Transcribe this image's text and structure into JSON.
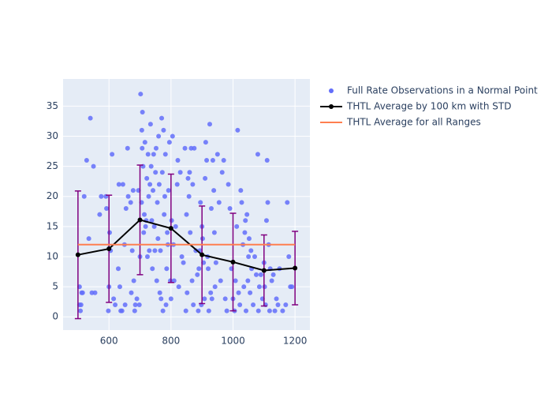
{
  "chart_data": {
    "type": "scatter",
    "xlim": [
      452,
      1248
    ],
    "ylim": [
      -2.2,
      39.5
    ],
    "xticks": [
      600,
      800,
      1000,
      1200
    ],
    "yticks": [
      0,
      5,
      10,
      15,
      20,
      25,
      30,
      35
    ],
    "grid": true,
    "legend": "right",
    "series": [
      {
        "name": "Full Rate Observations in a Normal Point",
        "type": "scatter",
        "color": "#636efa",
        "x": [
          505,
          505,
          508,
          510,
          512,
          515,
          520,
          528,
          535,
          540,
          545,
          550,
          555,
          570,
          575,
          590,
          592,
          598,
          600,
          602,
          605,
          610,
          615,
          620,
          630,
          632,
          635,
          638,
          642,
          645,
          650,
          652,
          655,
          660,
          662,
          670,
          672,
          675,
          678,
          680,
          683,
          685,
          690,
          695,
          698,
          700,
          702,
          705,
          706,
          707,
          708,
          710,
          712,
          714,
          716,
          718,
          720,
          722,
          724,
          726,
          728,
          730,
          732,
          734,
          736,
          738,
          740,
          742,
          744,
          746,
          748,
          750,
          752,
          754,
          756,
          758,
          760,
          762,
          764,
          766,
          768,
          770,
          772,
          774,
          776,
          778,
          780,
          782,
          784,
          786,
          788,
          790,
          792,
          795,
          798,
          800,
          802,
          805,
          808,
          810,
          815,
          820,
          822,
          825,
          830,
          835,
          840,
          845,
          848,
          850,
          852,
          855,
          858,
          860,
          862,
          865,
          868,
          870,
          872,
          875,
          880,
          885,
          888,
          890,
          893,
          895,
          898,
          900,
          902,
          905,
          908,
          910,
          912,
          915,
          918,
          920,
          922,
          925,
          928,
          930,
          932,
          935,
          938,
          940,
          942,
          945,
          950,
          955,
          960,
          965,
          970,
          975,
          980,
          985,
          990,
          995,
          1000,
          1005,
          1008,
          1012,
          1015,
          1018,
          1022,
          1025,
          1028,
          1032,
          1035,
          1038,
          1040,
          1042,
          1045,
          1048,
          1050,
          1052,
          1055,
          1058,
          1060,
          1065,
          1070,
          1075,
          1080,
          1082,
          1085,
          1090,
          1095,
          1100,
          1102,
          1105,
          1108,
          1110,
          1112,
          1115,
          1118,
          1120,
          1125,
          1130,
          1135,
          1140,
          1145,
          1150,
          1160,
          1170,
          1175,
          1180,
          1185,
          1190
        ],
        "values": [
          5,
          2,
          1,
          2,
          4,
          4,
          20,
          26,
          13,
          33,
          4,
          25,
          4,
          17,
          20,
          20,
          18,
          1,
          5,
          14,
          11,
          27,
          3,
          2,
          8,
          22,
          5,
          1,
          1,
          22,
          12,
          2,
          18,
          28,
          20,
          19,
          4,
          11,
          21,
          6,
          1,
          2,
          3,
          21,
          2,
          10,
          37,
          19,
          31,
          28,
          34,
          25,
          14,
          17,
          29,
          15,
          16,
          23,
          10,
          27,
          20,
          11,
          22,
          32,
          25,
          16,
          8,
          21,
          27,
          15,
          11,
          24,
          28,
          6,
          19,
          13,
          30,
          22,
          4,
          11,
          3,
          33,
          24,
          1,
          31,
          17,
          20,
          27,
          2,
          8,
          14,
          12,
          21,
          29,
          6,
          3,
          16,
          30,
          12,
          6,
          15,
          22,
          26,
          5,
          24,
          10,
          9,
          28,
          1,
          17,
          4,
          23,
          20,
          24,
          14,
          28,
          6,
          22,
          2,
          28,
          11,
          7,
          1,
          8,
          11,
          19,
          2,
          15,
          13,
          9,
          3,
          23,
          29,
          26,
          10,
          8,
          1,
          32,
          4,
          18,
          3,
          26,
          21,
          14,
          5,
          9,
          27,
          19,
          6,
          24,
          26,
          3,
          1,
          22,
          18,
          8,
          3,
          1,
          6,
          15,
          31,
          4,
          2,
          21,
          19,
          12,
          5,
          14,
          16,
          1,
          17,
          6,
          10,
          13,
          4,
          11,
          8,
          2,
          10,
          7,
          27,
          1,
          5,
          7,
          3,
          9,
          5,
          2,
          16,
          26,
          19,
          12,
          1,
          8,
          6,
          7,
          1,
          3,
          2,
          8,
          1,
          2,
          19,
          10,
          5,
          5
        ]
      },
      {
        "name": "THTL Average by 100 km with STD",
        "type": "line",
        "color": "#000000",
        "error_color": "#800080",
        "x": [
          500,
          600,
          700,
          800,
          900,
          1000,
          1100,
          1200
        ],
        "values": [
          10.3,
          11.3,
          16.1,
          14.7,
          10.3,
          9.1,
          7.7,
          8.1
        ],
        "error": [
          10.6,
          8.9,
          9.1,
          9.0,
          8.1,
          8.1,
          5.9,
          6.1
        ]
      },
      {
        "name": "THTL Average for all Ranges",
        "type": "line",
        "color": "#ff7f50",
        "x": [
          500,
          1200
        ],
        "values": [
          12.0,
          12.0
        ]
      }
    ]
  }
}
